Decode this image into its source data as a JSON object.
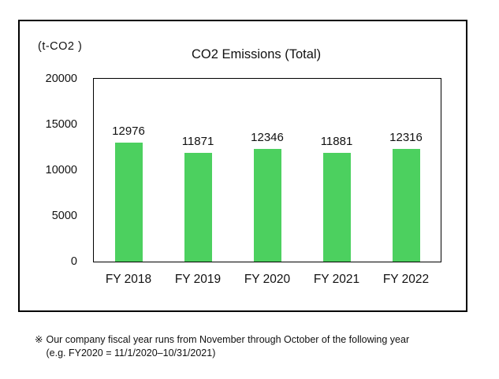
{
  "chart_data": {
    "type": "bar",
    "title": "CO2 Emissions (Total)",
    "unit_label": "(t-CO2 )",
    "categories": [
      "FY 2018",
      "FY 2019",
      "FY 2020",
      "FY 2021",
      "FY 2022"
    ],
    "values": [
      12976,
      11871,
      12346,
      11881,
      12316
    ],
    "value_labels": [
      "12976",
      "11871",
      "12346",
      "11881",
      "12316"
    ],
    "ylim": [
      0,
      20000
    ],
    "yticks": [
      0,
      5000,
      10000,
      15000,
      20000
    ],
    "ytick_labels": [
      "0",
      "5000",
      "10000",
      "15000",
      "20000"
    ],
    "grid": false,
    "legend_position": "none",
    "bar_color": "#4CD05F",
    "axis_color": "#000000"
  },
  "footnote": {
    "marker": "※",
    "line1": "Our company fiscal year runs from November through October of the following year",
    "line2": "(e.g. FY2020 = 11/1/2020–10/31/2021)"
  }
}
